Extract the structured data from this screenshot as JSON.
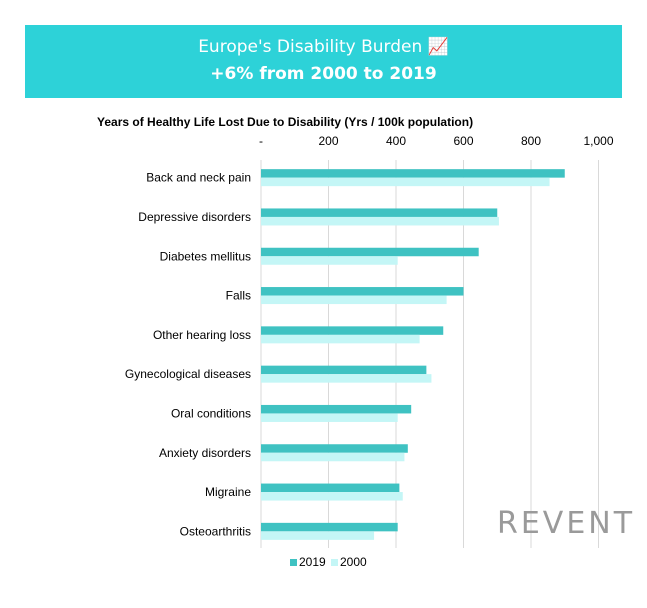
{
  "banner": {
    "title": "Europe's Disability Burden 📈",
    "subtitle": "+6% from 2000 to 2019"
  },
  "logo": {
    "text": "REVENT"
  },
  "colors": {
    "banner": "#2dd2d8",
    "series_2019": "#3fc2c2",
    "series_2000": "#c4f6f6",
    "grid": "#d9d9d9"
  },
  "chart_data": {
    "type": "bar",
    "orientation": "horizontal",
    "title": "Years of Healthy Life Lost Due to Disability (Yrs / 100k population)",
    "xlabel": "",
    "ylabel": "",
    "xlim": [
      0,
      1000
    ],
    "x_tick_labels": [
      "-",
      "200",
      "400",
      "600",
      "800",
      "1,000"
    ],
    "x_ticks": [
      0,
      200,
      400,
      600,
      800,
      1000
    ],
    "grid": true,
    "legend_position": "bottom",
    "categories": [
      "Back and neck pain",
      "Depressive disorders",
      "Diabetes mellitus",
      "Falls",
      "Other hearing loss",
      "Gynecological diseases",
      "Oral conditions",
      "Anxiety disorders",
      "Migraine",
      "Osteoarthritis"
    ],
    "series": [
      {
        "name": "2019",
        "values": [
          900,
          700,
          645,
          600,
          540,
          490,
          445,
          435,
          410,
          405
        ]
      },
      {
        "name": "2000",
        "values": [
          855,
          705,
          405,
          550,
          470,
          505,
          405,
          425,
          420,
          335
        ]
      }
    ]
  }
}
